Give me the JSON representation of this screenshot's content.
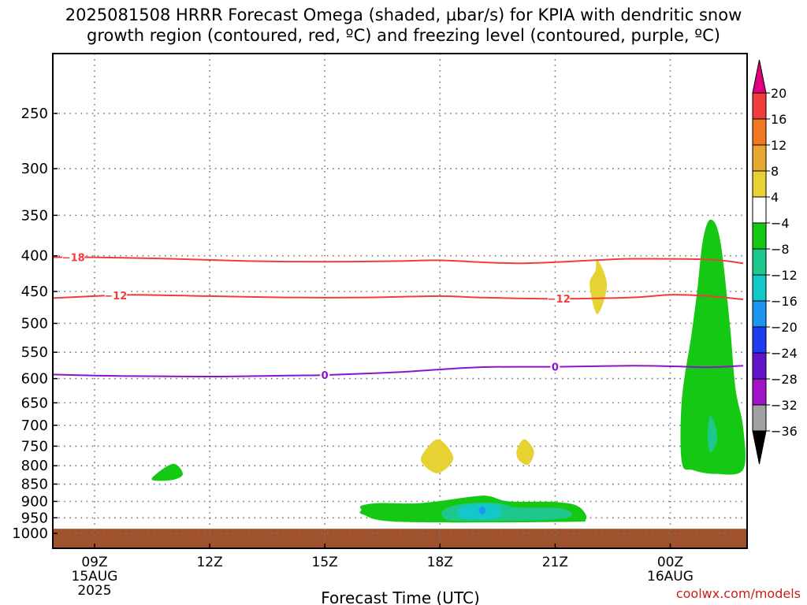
{
  "title": {
    "line1": "2025081508 HRRR Forecast Omega (shaded, µbar/s) for KPIA with dendritic snow",
    "line2": "growth region (contoured, red, ºC) and freezing level (contoured, purple, ºC)"
  },
  "xlabel": "Forecast Time (UTC)",
  "credit": "coolwx.com/models",
  "chart_data": {
    "type": "heatmap",
    "title": "2025081508 HRRR Forecast Omega (shaded, µbar/s) for KPIA with dendritic snow growth region (contoured, red, ºC) and freezing level (contoured, purple, ºC)",
    "xlabel": "Forecast Time (UTC)",
    "ylabel": "",
    "x_unit": "hours since 2025-08-15 08Z",
    "xlim": [
      0,
      17.9
    ],
    "ylim_hpa": [
      1030,
      200
    ],
    "y_scale": "log-pressure",
    "grid": true,
    "x_ticks": [
      {
        "hour": 1,
        "label": "09Z",
        "sub1": "15AUG",
        "sub2": "2025"
      },
      {
        "hour": 4,
        "label": "12Z",
        "sub1": "",
        "sub2": ""
      },
      {
        "hour": 7,
        "label": "15Z",
        "sub1": "",
        "sub2": ""
      },
      {
        "hour": 10,
        "label": "18Z",
        "sub1": "",
        "sub2": ""
      },
      {
        "hour": 13,
        "label": "21Z",
        "sub1": "",
        "sub2": ""
      },
      {
        "hour": 16,
        "label": "00Z",
        "sub1": "16AUG",
        "sub2": ""
      }
    ],
    "y_ticks": [
      250,
      300,
      350,
      400,
      450,
      500,
      550,
      600,
      650,
      700,
      750,
      800,
      850,
      900,
      950,
      1000
    ],
    "ground_level_hpa": 985,
    "ground_color": "#a0522d",
    "colorbar": {
      "levels": [
        "20",
        "16",
        "12",
        "8",
        "4",
        "−4",
        "−8",
        "−12",
        "−16",
        "−20",
        "−24",
        "−28",
        "−32",
        "−36"
      ],
      "colors": [
        "#e0007f",
        "#f03c3c",
        "#f07820",
        "#e6a82e",
        "#e6d232",
        "#ffffff",
        "#14c814",
        "#1ec88c",
        "#14c8c8",
        "#1e96f0",
        "#1e3cf0",
        "#6414c8",
        "#a014c8",
        "#a0a0a0",
        "#000000"
      ]
    },
    "contours": [
      {
        "name": "-18",
        "color": "#f03c3c",
        "label": "−18",
        "label_at": [
          0.45
        ],
        "points": [
          [
            -0.1,
            402
          ],
          [
            1,
            402
          ],
          [
            3,
            404
          ],
          [
            5,
            407
          ],
          [
            7,
            408
          ],
          [
            9,
            407
          ],
          [
            10,
            406
          ],
          [
            12,
            410
          ],
          [
            14,
            406
          ],
          [
            15,
            404
          ],
          [
            17,
            405
          ],
          [
            17.9,
            410
          ]
        ]
      },
      {
        "name": "-12",
        "color": "#f03c3c",
        "label": "−12",
        "label_at": [
          1.55,
          13.1
        ],
        "points": [
          [
            -0.1,
            460
          ],
          [
            1,
            457
          ],
          [
            2,
            455
          ],
          [
            4,
            457
          ],
          [
            6,
            459
          ],
          [
            8,
            459
          ],
          [
            10,
            457
          ],
          [
            11,
            459
          ],
          [
            13,
            461
          ],
          [
            15,
            459
          ],
          [
            16,
            455
          ],
          [
            17,
            457
          ],
          [
            17.9,
            462
          ]
        ]
      },
      {
        "name": "0",
        "color": "#8c14c8",
        "label": "0",
        "label_at": [
          7.0,
          13.0
        ],
        "points": [
          [
            -0.1,
            592
          ],
          [
            1,
            594
          ],
          [
            2,
            595
          ],
          [
            4,
            596
          ],
          [
            6,
            594
          ],
          [
            7,
            593
          ],
          [
            9,
            587
          ],
          [
            11,
            578
          ],
          [
            13,
            577
          ],
          [
            15,
            575
          ],
          [
            16,
            576
          ],
          [
            17,
            578
          ],
          [
            17.9,
            575
          ]
        ]
      }
    ],
    "omega_regions": [
      {
        "value": "-4 to -8",
        "color": "#14c814",
        "points": [
          [
            2.55,
            827
          ],
          [
            3.05,
            795
          ],
          [
            3.3,
            822
          ],
          [
            3.05,
            838
          ],
          [
            2.55,
            840
          ]
        ]
      },
      {
        "value": "-4 to -8",
        "color": "#14c814",
        "points": [
          [
            7.95,
            913
          ],
          [
            8.4,
            905
          ],
          [
            9.5,
            905
          ],
          [
            10.9,
            885
          ],
          [
            11.3,
            885
          ],
          [
            11.8,
            900
          ],
          [
            13.0,
            902
          ],
          [
            13.6,
            915
          ],
          [
            13.8,
            955
          ],
          [
            13.2,
            963
          ],
          [
            9.0,
            963
          ],
          [
            8.0,
            940
          ],
          [
            7.95,
            925
          ]
        ]
      },
      {
        "value": "-8 to -12",
        "color": "#1ec88c",
        "points": [
          [
            10.1,
            925
          ],
          [
            10.6,
            907
          ],
          [
            11.5,
            905
          ],
          [
            12.0,
            918
          ],
          [
            13.2,
            922
          ],
          [
            13.2,
            953
          ],
          [
            10.6,
            960
          ],
          [
            10.1,
            950
          ]
        ]
      },
      {
        "value": "-12 to -16",
        "color": "#14c8c8",
        "points": [
          [
            10.5,
            920
          ],
          [
            10.8,
            910
          ],
          [
            11.4,
            910
          ],
          [
            11.6,
            922
          ],
          [
            11.45,
            952
          ],
          [
            10.75,
            955
          ],
          [
            10.5,
            945
          ]
        ]
      },
      {
        "value": "-16 to -20",
        "color": "#1e96f0",
        "points": [
          [
            11.0,
            927
          ],
          [
            11.1,
            915
          ],
          [
            11.2,
            927
          ],
          [
            11.1,
            940
          ]
        ]
      },
      {
        "value": "-4 to -8",
        "color": "#14c814",
        "points": [
          [
            16.3,
            645
          ],
          [
            16.55,
            520
          ],
          [
            16.7,
            450
          ],
          [
            16.85,
            380
          ],
          [
            17.05,
            355
          ],
          [
            17.3,
            380
          ],
          [
            17.55,
            500
          ],
          [
            17.7,
            620
          ],
          [
            17.9,
            705
          ],
          [
            17.9,
            810
          ],
          [
            17.2,
            822
          ],
          [
            16.6,
            812
          ],
          [
            16.3,
            790
          ]
        ]
      },
      {
        "value": "-8 to -12",
        "color": "#1ec88c",
        "points": [
          [
            16.98,
            710
          ],
          [
            17.05,
            678
          ],
          [
            17.2,
            710
          ],
          [
            17.2,
            745
          ],
          [
            17.05,
            765
          ],
          [
            16.98,
            742
          ]
        ]
      },
      {
        "value": "4 to 8",
        "color": "#e6d232",
        "points": [
          [
            14.05,
            420
          ],
          [
            14.1,
            405
          ],
          [
            14.35,
            440
          ],
          [
            14.1,
            485
          ],
          [
            13.9,
            440
          ]
        ]
      },
      {
        "value": "4 to 8",
        "color": "#e6d232",
        "points": [
          [
            9.55,
            770
          ],
          [
            9.95,
            733
          ],
          [
            10.35,
            780
          ],
          [
            9.95,
            820
          ],
          [
            9.55,
            795
          ]
        ]
      },
      {
        "value": "4 to 8",
        "color": "#e6d232",
        "points": [
          [
            12.0,
            760
          ],
          [
            12.2,
            733
          ],
          [
            12.45,
            763
          ],
          [
            12.3,
            797
          ],
          [
            12.05,
            785
          ]
        ]
      }
    ]
  }
}
